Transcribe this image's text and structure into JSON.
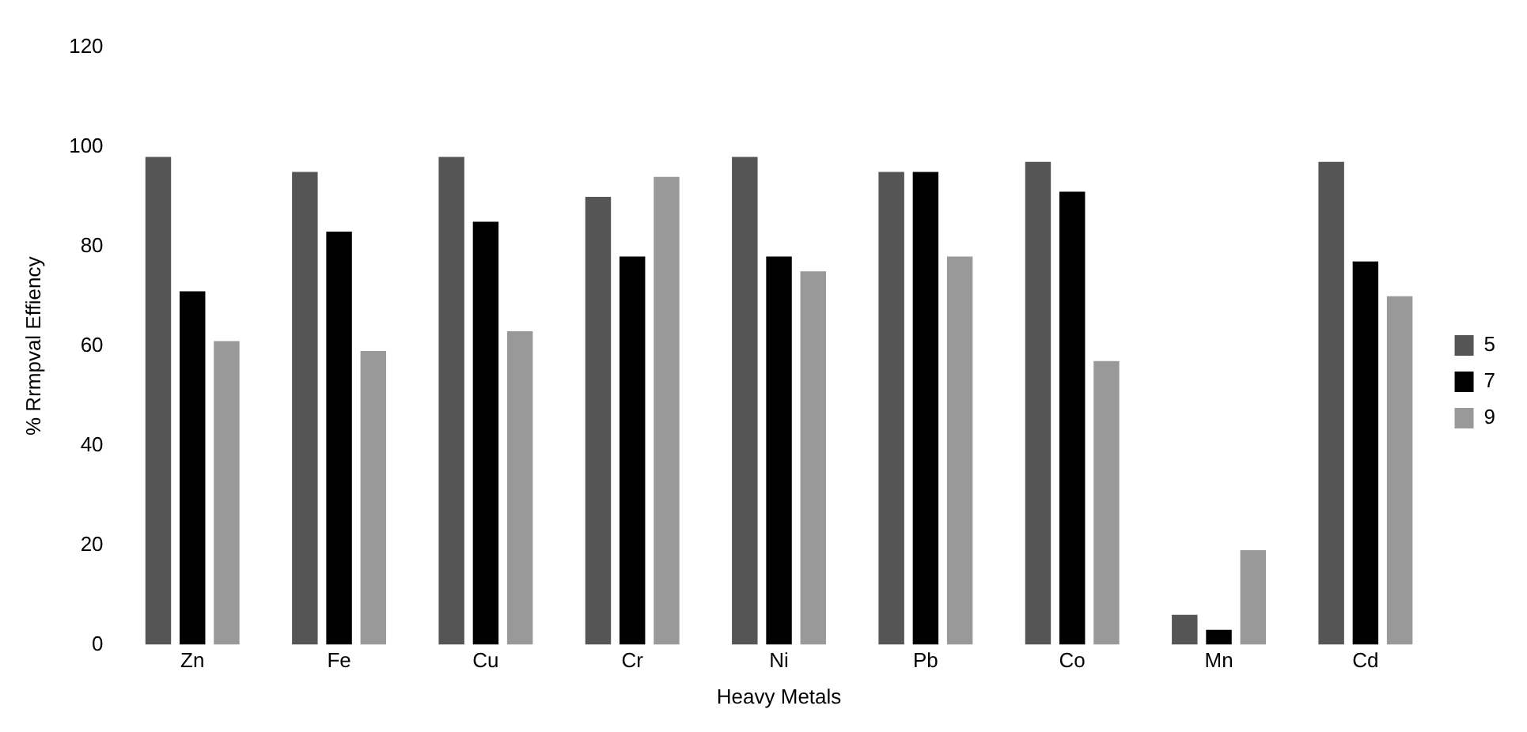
{
  "chart_data": {
    "type": "bar",
    "xlabel": "Heavy Metals",
    "ylabel": "% Rrmpval Effiency",
    "categories": [
      "Zn",
      "Fe",
      "Cu",
      "Cr",
      "Ni",
      "Pb",
      "Co",
      "Mn",
      "Cd"
    ],
    "series": [
      {
        "name": "5",
        "color": "#555555",
        "values": [
          98,
          95,
          98,
          90,
          98,
          95,
          97,
          6,
          97
        ]
      },
      {
        "name": "7",
        "color": "#000000",
        "values": [
          71,
          83,
          85,
          78,
          78,
          95,
          91,
          3,
          77
        ]
      },
      {
        "name": "9",
        "color": "#999999",
        "values": [
          61,
          59,
          63,
          94,
          75,
          78,
          57,
          19,
          70
        ]
      }
    ],
    "ylim": [
      0,
      120
    ],
    "yticks": [
      0,
      20,
      40,
      60,
      80,
      100,
      120
    ],
    "grid": false,
    "legend": "right"
  }
}
